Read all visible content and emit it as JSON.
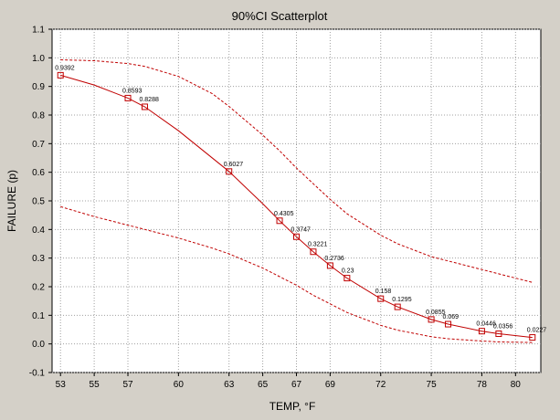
{
  "chart_data": {
    "type": "scatter",
    "title": "90%CI Scatterplot",
    "xlabel": "TEMP, °F",
    "ylabel": "FAILURE (p)",
    "xlim": [
      52.5,
      81.5
    ],
    "ylim": [
      -0.1,
      1.1
    ],
    "x_ticks": [
      53,
      55,
      57,
      60,
      63,
      65,
      67,
      69,
      72,
      75,
      78,
      80
    ],
    "y_ticks": [
      -0.1,
      0.0,
      0.1,
      0.2,
      0.3,
      0.4,
      0.5,
      0.6,
      0.7,
      0.8,
      0.9,
      1.0,
      1.1
    ],
    "y_tick_labels": [
      "-0.1",
      "0.0",
      "0.1",
      "0.2",
      "0.3",
      "0.4",
      "0.5",
      "0.6",
      "0.7",
      "0.8",
      "0.9",
      "1.0",
      "1.1"
    ],
    "grid": true,
    "points": [
      {
        "x": 53,
        "y": 0.9392,
        "label": "0.9392"
      },
      {
        "x": 57,
        "y": 0.8593,
        "label": "0.8593"
      },
      {
        "x": 58,
        "y": 0.8288,
        "label": "0.8288"
      },
      {
        "x": 63,
        "y": 0.6027,
        "label": "0.6027"
      },
      {
        "x": 66,
        "y": 0.4305,
        "label": "0.4305"
      },
      {
        "x": 67,
        "y": 0.3747,
        "label": "0.3747"
      },
      {
        "x": 68,
        "y": 0.3221,
        "label": "0.3221"
      },
      {
        "x": 69,
        "y": 0.2736,
        "label": "0.2736"
      },
      {
        "x": 70,
        "y": 0.23,
        "label": "0.23"
      },
      {
        "x": 72,
        "y": 0.158,
        "label": "0.158"
      },
      {
        "x": 73,
        "y": 0.1295,
        "label": "0.1295"
      },
      {
        "x": 75,
        "y": 0.0855,
        "label": "0.0855"
      },
      {
        "x": 76,
        "y": 0.069,
        "label": "0.069"
      },
      {
        "x": 78,
        "y": 0.0446,
        "label": "0.0446"
      },
      {
        "x": 79,
        "y": 0.0356,
        "label": "0.0356"
      },
      {
        "x": 81,
        "y": 0.0227,
        "label": "0.0227"
      }
    ],
    "fit_line": {
      "x": [
        53,
        55,
        57,
        58,
        60,
        63,
        65,
        66,
        67,
        68,
        69,
        70,
        72,
        73,
        75,
        76,
        78,
        79,
        81
      ],
      "y": [
        0.9392,
        0.905,
        0.8593,
        0.8288,
        0.745,
        0.6027,
        0.49,
        0.4305,
        0.3747,
        0.3221,
        0.2736,
        0.23,
        0.158,
        0.1295,
        0.0855,
        0.069,
        0.0446,
        0.0356,
        0.0227
      ]
    },
    "ci_upper": {
      "x": [
        53,
        55,
        57,
        58,
        60,
        62,
        63,
        65,
        66,
        67,
        68,
        69,
        70,
        72,
        73,
        75,
        76,
        78,
        79,
        81
      ],
      "y": [
        0.993,
        0.99,
        0.98,
        0.97,
        0.935,
        0.875,
        0.83,
        0.73,
        0.675,
        0.615,
        0.56,
        0.505,
        0.455,
        0.38,
        0.35,
        0.305,
        0.29,
        0.26,
        0.245,
        0.215
      ]
    },
    "ci_lower": {
      "x": [
        53,
        55,
        57,
        58,
        60,
        62,
        63,
        65,
        66,
        67,
        68,
        69,
        70,
        72,
        73,
        75,
        76,
        78,
        79,
        81
      ],
      "y": [
        0.48,
        0.445,
        0.415,
        0.4,
        0.37,
        0.335,
        0.315,
        0.265,
        0.235,
        0.205,
        0.17,
        0.14,
        0.11,
        0.065,
        0.048,
        0.025,
        0.018,
        0.01,
        0.007,
        0.005
      ]
    }
  }
}
